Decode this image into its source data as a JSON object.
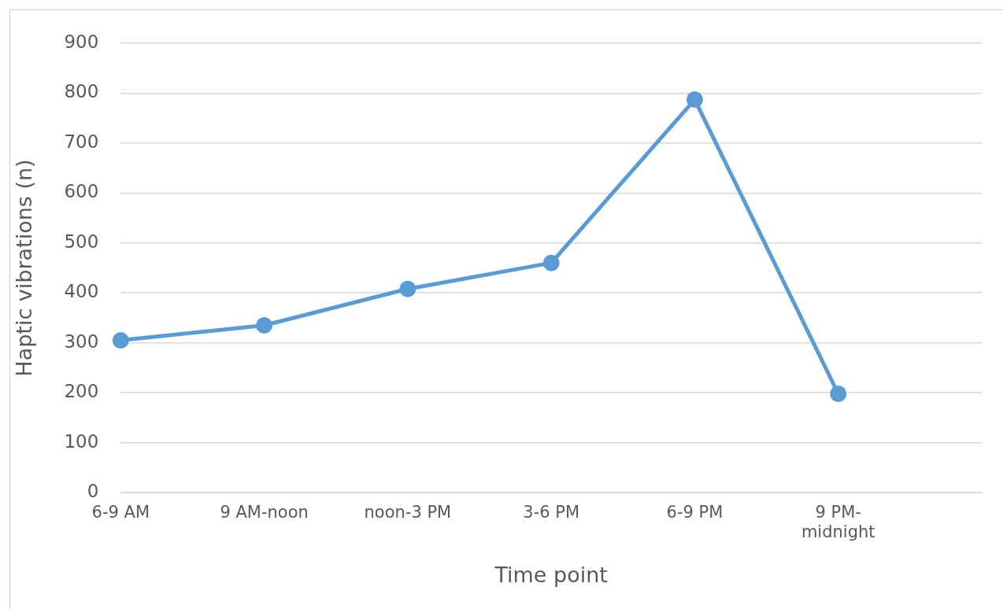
{
  "chart_data": {
    "type": "line",
    "xlabel": "Time point",
    "ylabel": "Haptic vibrations (n)",
    "categories": [
      "6-9 AM",
      "9 AM-noon",
      "noon-3 PM",
      "3-6 PM",
      "6-9 PM",
      "9 PM-\nmidnight",
      null
    ],
    "series": [
      {
        "color": "#5b9bd5",
        "values": [
          305,
          335,
          408,
          460,
          787,
          198,
          null
        ]
      }
    ],
    "ylim": [
      0,
      900
    ],
    "yticks": [
      0,
      100,
      200,
      300,
      400,
      500,
      600,
      700,
      800,
      900
    ],
    "grid": "y",
    "marker": "circle",
    "line_style": "solid",
    "legend": false
  }
}
